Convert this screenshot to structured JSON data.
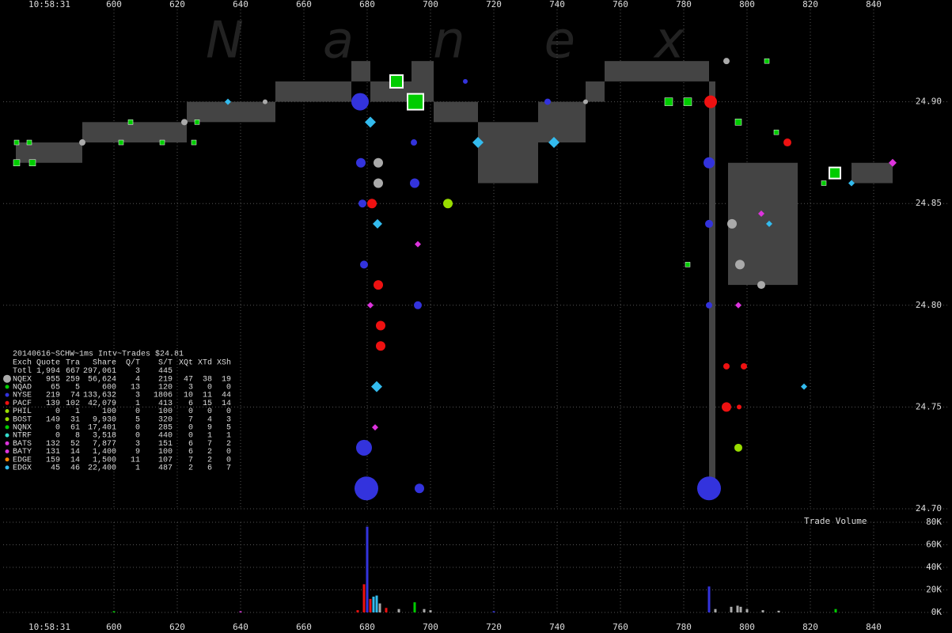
{
  "watermark": "Nanex",
  "chart_data": [
    {
      "type": "scatter",
      "title": "20140616~SCHW~1ms Intv~Trades $24.81",
      "time_label": "10:58:31",
      "xlim": [
        565,
        864
      ],
      "xticks": [
        600,
        620,
        640,
        660,
        680,
        700,
        720,
        740,
        760,
        780,
        800,
        820,
        840
      ],
      "ylim": [
        24.7,
        24.95
      ],
      "yticks": [
        {
          "value": 24.7,
          "label": "24.70"
        },
        {
          "value": 24.75,
          "label": "24.75"
        },
        {
          "value": 24.8,
          "label": "24.80"
        },
        {
          "value": 24.85,
          "label": "24.85"
        },
        {
          "value": 24.9,
          "label": "24.90"
        }
      ],
      "grid": true,
      "nbbo": {
        "color": "#444444",
        "x": [
          569,
          590,
          623,
          651,
          675,
          681,
          694,
          701,
          715,
          734,
          749,
          755,
          788,
          790,
          794,
          816,
          833,
          846
        ],
        "bid": [
          24.87,
          24.88,
          24.89,
          24.9,
          24.91,
          24.9,
          24.9,
          24.89,
          24.86,
          24.88,
          24.9,
          24.91,
          24.71,
          null,
          24.81,
          null,
          24.86
        ],
        "ask": [
          24.88,
          24.89,
          24.9,
          24.91,
          24.92,
          24.91,
          24.92,
          24.9,
          24.89,
          24.9,
          24.91,
          24.92,
          24.91,
          null,
          24.87,
          null,
          24.87
        ]
      },
      "series": [
        {
          "color": "#aaaaaa",
          "marker": "circle",
          "x": [
            683.5,
            683.5,
            795.25,
            797.75,
            804.5,
            793.5,
            749,
            647.75,
            622.25,
            590
          ],
          "values": [
            24.86,
            24.87,
            24.84,
            24.82,
            24.81,
            24.92,
            24.9,
            24.9,
            24.89,
            24.88
          ],
          "sizes": [
            6,
            6,
            6,
            6,
            5,
            4,
            3,
            3,
            4,
            4
          ]
        },
        {
          "color": "#3333dd",
          "marker": "circle",
          "x": [
            677.75,
            679,
            679.75,
            696.5,
            695,
            696,
            694.75,
            788,
            788,
            788,
            788,
            711,
            737,
            678,
            678.5,
            679
          ],
          "values": [
            24.9,
            24.73,
            24.71,
            24.71,
            24.86,
            24.8,
            24.88,
            24.87,
            24.71,
            24.8,
            24.84,
            24.91,
            24.9,
            24.87,
            24.85,
            24.82
          ],
          "sizes": [
            11,
            10,
            15,
            6,
            6,
            5,
            4,
            7,
            15,
            4,
            5,
            3,
            4,
            6,
            5,
            5
          ]
        },
        {
          "color": "#ee1111",
          "marker": "circle",
          "x": [
            788.5,
            683.5,
            684.25,
            684.25,
            793.5,
            681.5,
            812.75,
            797.5,
            793.5,
            799
          ],
          "values": [
            24.9,
            24.81,
            24.79,
            24.78,
            24.75,
            24.85,
            24.88,
            24.75,
            24.77,
            24.77
          ],
          "sizes": [
            8,
            6,
            6,
            6,
            6,
            6,
            5,
            3,
            4,
            4
          ]
        },
        {
          "color": "#99dd00",
          "marker": "circle",
          "x": [
            705.5,
            797.25
          ],
          "values": [
            24.85,
            24.73
          ],
          "sizes": [
            6,
            5
          ]
        },
        {
          "color": "#00cc00",
          "marker": "square",
          "x": [
            569.25,
            574.25,
            569.25,
            573.25,
            602.25,
            605.25,
            615.25,
            625.25,
            626.25,
            689.25,
            695.25,
            775.25,
            781.25,
            781.25,
            797.25,
            806.25,
            809.25,
            824.25,
            827.75
          ],
          "values": [
            24.87,
            24.87,
            24.88,
            24.88,
            24.88,
            24.89,
            24.88,
            24.88,
            24.89,
            24.91,
            24.9,
            24.9,
            24.9,
            24.82,
            24.89,
            24.92,
            24.885,
            24.86,
            24.865
          ],
          "sizes": [
            4,
            4,
            3,
            3,
            3,
            3,
            3,
            3,
            3,
            8,
            10,
            5,
            5,
            3,
            4,
            3,
            3,
            3,
            7
          ]
        },
        {
          "color": "#33bbee",
          "marker": "diamond",
          "x": [
            715,
            739,
            636,
            683,
            818,
            807,
            833,
            683.25,
            681
          ],
          "values": [
            24.88,
            24.88,
            24.9,
            24.76,
            24.76,
            24.84,
            24.86,
            24.84,
            24.89
          ],
          "sizes": [
            7,
            7,
            4,
            7,
            4,
            4,
            4,
            6,
            7
          ]
        },
        {
          "color": "#dd33dd",
          "marker": "diamond",
          "x": [
            682.5,
            696,
            797.25,
            804.5,
            846,
            681
          ],
          "values": [
            24.74,
            24.83,
            24.8,
            24.845,
            24.87,
            24.8
          ],
          "sizes": [
            4,
            4,
            4,
            4,
            5,
            4
          ]
        }
      ]
    },
    {
      "type": "bar",
      "title": "Trade Volume",
      "time_label": "10:58:31",
      "xlim": [
        565,
        864
      ],
      "xticks": [
        600,
        620,
        640,
        660,
        680,
        700,
        720,
        740,
        760,
        780,
        800,
        820,
        840
      ],
      "ylim": [
        0,
        80000
      ],
      "yticks": [
        {
          "value": 0,
          "label": "0K"
        },
        {
          "value": 20000,
          "label": "20K"
        },
        {
          "value": 40000,
          "label": "40K"
        },
        {
          "value": 60000,
          "label": "60K"
        },
        {
          "value": 80000,
          "label": "80K"
        }
      ],
      "grid": true,
      "x": [
        600,
        640,
        677,
        679,
        680,
        681,
        682,
        683,
        684,
        686,
        690,
        695,
        698,
        700,
        720,
        788,
        790,
        795,
        797,
        798,
        800,
        805,
        810,
        828
      ],
      "values": [
        1000,
        1000,
        2000,
        25000,
        76000,
        12000,
        14000,
        15000,
        8000,
        4000,
        3000,
        9000,
        3000,
        2000,
        1000,
        23000,
        3000,
        5000,
        6000,
        5000,
        3000,
        2000,
        1500,
        3000
      ],
      "colors": [
        "#00cc00",
        "#dd33dd",
        "#ee1111",
        "#ee1111",
        "#3333dd",
        "#ee1111",
        "#33bbee",
        "#33bbee",
        "#aaaaaa",
        "#ee1111",
        "#aaaaaa",
        "#00cc00",
        "#aaaaaa",
        "#aaaaaa",
        "#3333dd",
        "#3333dd",
        "#aaaaaa",
        "#aaaaaa",
        "#aaaaaa",
        "#aaaaaa",
        "#aaaaaa",
        "#aaaaaa",
        "#aaaaaa",
        "#00cc00"
      ]
    }
  ],
  "table": {
    "header": [
      "Exch",
      "Quote",
      "Tra",
      "Share",
      "Q/T",
      "S/T",
      "XQt",
      "XTd",
      "XSh"
    ],
    "rows": [
      [
        "Totl",
        "1,994",
        "667",
        "297,061",
        "3",
        "445"
      ],
      [
        "NQEX",
        "955",
        "259",
        "56,624",
        "4",
        "219",
        "47",
        "38",
        "19"
      ],
      [
        "NQAD",
        "65",
        "5",
        "600",
        "13",
        "120",
        "3",
        "0",
        "0"
      ],
      [
        "NYSE",
        "219",
        "74",
        "133,632",
        "3",
        "1806",
        "10",
        "11",
        "44"
      ],
      [
        "PACF",
        "139",
        "102",
        "42,079",
        "1",
        "413",
        "6",
        "15",
        "14"
      ],
      [
        "PHIL",
        "0",
        "1",
        "100",
        "0",
        "100",
        "0",
        "0",
        "0"
      ],
      [
        "BOST",
        "149",
        "31",
        "9,930",
        "5",
        "320",
        "7",
        "4",
        "3"
      ],
      [
        "NQNX",
        "0",
        "61",
        "17,401",
        "0",
        "285",
        "0",
        "9",
        "5"
      ],
      [
        "NTRF",
        "0",
        "8",
        "3,518",
        "0",
        "440",
        "0",
        "1",
        "1"
      ],
      [
        "BATS",
        "132",
        "52",
        "7,877",
        "3",
        "151",
        "6",
        "7",
        "2"
      ],
      [
        "BATY",
        "131",
        "14",
        "1,400",
        "9",
        "100",
        "6",
        "2",
        "0"
      ],
      [
        "EDGE",
        "159",
        "14",
        "1,500",
        "11",
        "107",
        "7",
        "2",
        "0"
      ],
      [
        "EDGX",
        "45",
        "46",
        "22,400",
        "1",
        "487",
        "2",
        "6",
        "7"
      ]
    ]
  }
}
